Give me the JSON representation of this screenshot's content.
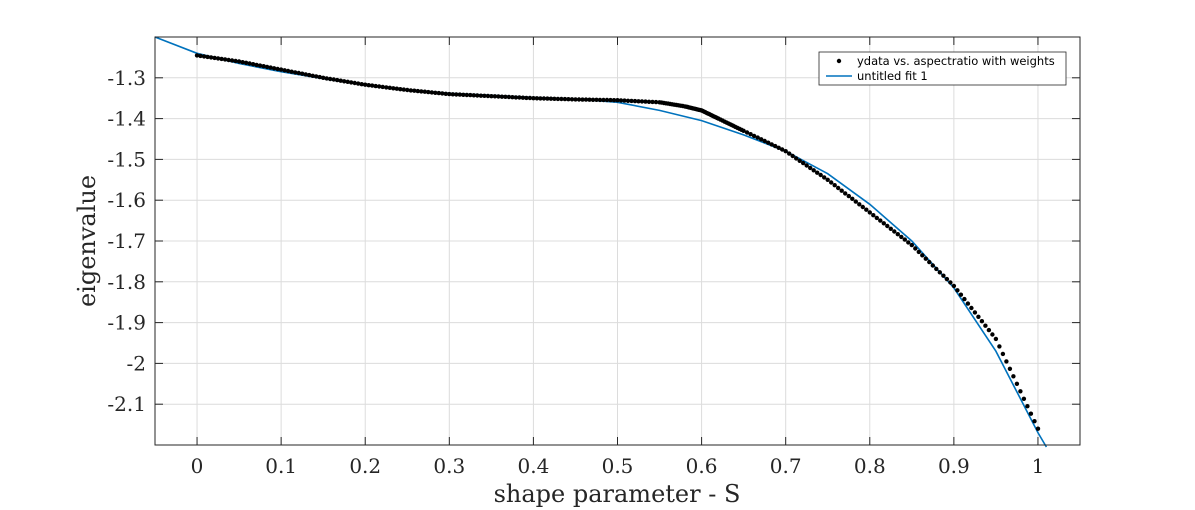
{
  "chart_data": {
    "type": "line",
    "title": "",
    "xlabel": "shape parameter - S",
    "ylabel": "eigenvalue",
    "xlim": [
      -0.05,
      1.05
    ],
    "ylim": [
      -2.2,
      -1.2
    ],
    "xticks": [
      0,
      0.1,
      0.2,
      0.3,
      0.4,
      0.5,
      0.6,
      0.7,
      0.8,
      0.9,
      1
    ],
    "xtick_labels": [
      "0",
      "0.1",
      "0.2",
      "0.3",
      "0.4",
      "0.5",
      "0.6",
      "0.7",
      "0.8",
      "0.9",
      "1"
    ],
    "yticks": [
      -1.3,
      -1.4,
      -1.5,
      -1.6,
      -1.7,
      -1.8,
      -1.9,
      -2,
      -2.1
    ],
    "ytick_labels": [
      "-1.3",
      "-1.4",
      "-1.5",
      "-1.6",
      "-1.7",
      "-1.8",
      "-1.9",
      "-2",
      "-2.1"
    ],
    "grid": true,
    "legend_position": "top-right",
    "series": [
      {
        "name": "ydata vs. aspectratio with weights",
        "kind": "points",
        "color": "#000000",
        "x": [
          0.0,
          0.05,
          0.1,
          0.15,
          0.2,
          0.25,
          0.3,
          0.35,
          0.4,
          0.45,
          0.5,
          0.55,
          0.58,
          0.6,
          0.62,
          0.65,
          0.7,
          0.75,
          0.8,
          0.85,
          0.9,
          0.95,
          1.0
        ],
        "y": [
          -1.245,
          -1.26,
          -1.28,
          -1.3,
          -1.317,
          -1.33,
          -1.34,
          -1.345,
          -1.35,
          -1.353,
          -1.355,
          -1.36,
          -1.37,
          -1.38,
          -1.4,
          -1.43,
          -1.48,
          -1.55,
          -1.63,
          -1.71,
          -1.81,
          -1.94,
          -2.16
        ]
      },
      {
        "name": "untitled fit 1",
        "kind": "line",
        "color": "#0072bd",
        "x": [
          -0.05,
          0.0,
          0.05,
          0.1,
          0.15,
          0.2,
          0.25,
          0.3,
          0.35,
          0.4,
          0.45,
          0.5,
          0.55,
          0.6,
          0.65,
          0.7,
          0.75,
          0.8,
          0.85,
          0.9,
          0.95,
          1.0,
          1.01
        ],
        "y": [
          -1.2,
          -1.24,
          -1.265,
          -1.285,
          -1.302,
          -1.318,
          -1.33,
          -1.338,
          -1.343,
          -1.348,
          -1.352,
          -1.36,
          -1.38,
          -1.405,
          -1.44,
          -1.48,
          -1.535,
          -1.61,
          -1.7,
          -1.815,
          -1.97,
          -2.17,
          -2.205
        ]
      }
    ]
  }
}
